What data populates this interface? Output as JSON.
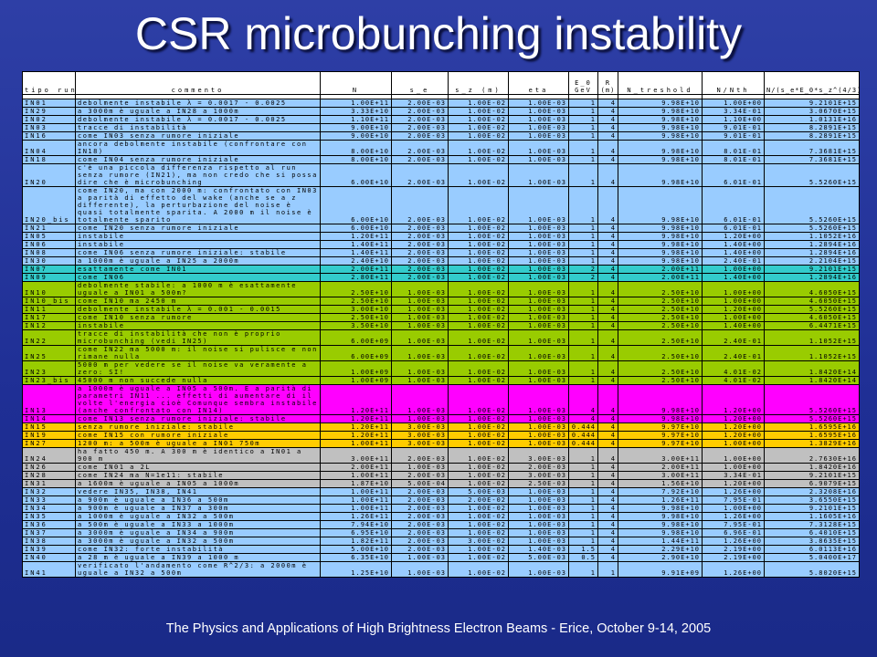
{
  "title": "CSR microbunching instability",
  "footer": "The Physics and Applications of High Brightness Electron Beams - Erice, October 9-14, 2005",
  "colors": {
    "blue": "#99ccff",
    "teal": "#33cccc",
    "green": "#99cc00",
    "magenta": "#ff00ff",
    "orange": "#ffcc00",
    "gray": "#c0c0c0",
    "white": "#ffffff"
  },
  "table": {
    "headers": [
      "tipo run",
      "commento",
      "N",
      "s_e",
      "s_z (m)",
      "eta",
      "E_0 GeV",
      "R (m)",
      "N_treshold",
      "N/Nth",
      "N/(s_e*E_0*s_z^(4/3)*R^(2/3))"
    ],
    "rows": [
      {
        "color": "white",
        "h": 5,
        "cells": [
          "",
          "",
          "",
          "",
          "",
          "",
          "",
          "",
          "",
          "",
          ""
        ]
      },
      {
        "color": "blue",
        "cells": [
          "IN01",
          "debolmente instabile λ = 0.0017 - 0.0025",
          "1.00E+11",
          "2.00E-03",
          "1.00E-02",
          "1.00E-03",
          "1",
          "4",
          "9.98E+10",
          "1.00E+00",
          "9.2101E+15"
        ]
      },
      {
        "color": "blue",
        "cells": [
          "IN29",
          "a 3000m è uguale a IN28 a 1000m",
          "3.33E+10",
          "2.00E-03",
          "1.00E-02",
          "1.00E-03",
          "1",
          "4",
          "9.98E+10",
          "3.34E-01",
          "3.0670E+15"
        ]
      },
      {
        "color": "blue",
        "cells": [
          "IN02",
          "debolmente instabile λ = 0.0017 - 0.0025",
          "1.10E+11",
          "2.00E-03",
          "1.00E-02",
          "1.00E-03",
          "1",
          "4",
          "9.98E+10",
          "1.10E+00",
          "1.0131E+16"
        ]
      },
      {
        "color": "blue",
        "cells": [
          "IN03",
          "tracce di instabilità",
          "9.00E+10",
          "2.00E-03",
          "1.00E-02",
          "1.00E-03",
          "1",
          "4",
          "9.98E+10",
          "9.01E-01",
          "8.2891E+15"
        ]
      },
      {
        "color": "blue",
        "cells": [
          "IN16",
          "come IN03 senza rumore iniziale",
          "9.00E+10",
          "2.00E-03",
          "1.00E-02",
          "1.00E-03",
          "1",
          "4",
          "9.98E+10",
          "9.01E-01",
          "8.2891E+15"
        ]
      },
      {
        "color": "blue",
        "cells": [
          "IN04",
          "ancora debolmente instabile (confrontare con IN18)",
          "8.00E+10",
          "2.00E-03",
          "1.00E-02",
          "1.00E-03",
          "1",
          "4",
          "9.98E+10",
          "8.01E-01",
          "7.3681E+15"
        ]
      },
      {
        "color": "blue",
        "cells": [
          "IN18",
          "come IN04 senza rumore iniziale",
          "8.00E+10",
          "2.00E-03",
          "1.00E-02",
          "1.00E-03",
          "1",
          "4",
          "9.98E+10",
          "8.01E-01",
          "7.3681E+15"
        ]
      },
      {
        "color": "blue",
        "cells": [
          "IN20",
          "c'è una piccola differenza rispetto al run senza rumore (IN21), ma non credo che si possa dire che è microbunching",
          "6.00E+10",
          "2.00E-03",
          "1.00E-02",
          "1.00E-03",
          "1",
          "4",
          "9.98E+10",
          "6.01E-01",
          "5.5260E+15"
        ]
      },
      {
        "color": "blue",
        "cells": [
          "IN20_bis",
          "come IN20, ma con 2000 m: confrontato con IN03 a parità di effetto del wake (anche se a z differente), la perturbazione del noise è quasi totalmente sparita. A 2000 m il noise è totalmente sparito",
          "6.00E+10",
          "2.00E-03",
          "1.00E-02",
          "1.00E-03",
          "1",
          "4",
          "9.98E+10",
          "6.01E-01",
          "5.5260E+15"
        ]
      },
      {
        "color": "blue",
        "cells": [
          "IN21",
          "come IN20 senza rumore iniziale",
          "6.00E+10",
          "2.00E-03",
          "1.00E-02",
          "1.00E-03",
          "1",
          "4",
          "9.98E+10",
          "6.01E-01",
          "5.5260E+15"
        ]
      },
      {
        "color": "blue",
        "cells": [
          "IN05",
          "instabile",
          "1.20E+11",
          "2.00E-03",
          "1.00E-02",
          "1.00E-03",
          "1",
          "4",
          "9.98E+10",
          "1.20E+00",
          "1.1052E+16"
        ]
      },
      {
        "color": "blue",
        "cells": [
          "IN06",
          "instabile",
          "1.40E+11",
          "2.00E-03",
          "1.00E-02",
          "1.00E-03",
          "1",
          "4",
          "9.98E+10",
          "1.40E+00",
          "1.2894E+16"
        ]
      },
      {
        "color": "blue",
        "cells": [
          "IN08",
          "come IN06 senza rumore iniziale: stabile",
          "1.40E+11",
          "2.00E-03",
          "1.00E-02",
          "1.00E-03",
          "1",
          "4",
          "9.98E+10",
          "1.40E+00",
          "1.2894E+16"
        ]
      },
      {
        "color": "blue",
        "cells": [
          "IN30",
          "a 1000m è uguale a IN25 a 2000m",
          "2.40E+10",
          "2.00E-03",
          "1.00E-02",
          "1.00E-03",
          "1",
          "4",
          "9.98E+10",
          "2.40E-01",
          "2.2104E+15"
        ]
      },
      {
        "color": "teal",
        "cells": [
          "IN07",
          "esattamente come IN01",
          "2.00E+11",
          "2.00E-03",
          "1.00E-02",
          "1.00E-03",
          "2",
          "4",
          "2.00E+11",
          "1.00E+00",
          "9.2101E+15"
        ]
      },
      {
        "color": "teal",
        "cells": [
          "IN09",
          "come IN06",
          "2.80E+11",
          "2.00E-03",
          "1.00E-02",
          "1.00E-03",
          "2",
          "4",
          "2.00E+11",
          "1.40E+00",
          "1.2894E+16"
        ]
      },
      {
        "color": "green",
        "cells": [
          "IN10",
          "debolmente stabile: a 1000 m è esattamente uguale a IN01 a 500m?",
          "2.50E+10",
          "1.00E-03",
          "1.00E-02",
          "1.00E-03",
          "1",
          "4",
          "2.50E+10",
          "1.00E+00",
          "4.6050E+15"
        ]
      },
      {
        "color": "green",
        "cells": [
          "IN10_bis",
          "come IN10 ma 2450 m",
          "2.50E+10",
          "1.00E-03",
          "1.00E-02",
          "1.00E-03",
          "1",
          "4",
          "2.50E+10",
          "1.00E+00",
          "4.6050E+15"
        ]
      },
      {
        "color": "green",
        "cells": [
          "IN11",
          "debolmente instabile λ = 0.001 - 0.0015",
          "3.00E+10",
          "1.00E-03",
          "1.00E-02",
          "1.00E-03",
          "1",
          "4",
          "2.50E+10",
          "1.20E+00",
          "5.5260E+15"
        ]
      },
      {
        "color": "green",
        "cells": [
          "IN17",
          "come IN10 senza rumore",
          "2.50E+10",
          "1.00E-03",
          "1.00E-02",
          "1.00E-03",
          "1",
          "4",
          "2.50E+10",
          "1.00E+00",
          "4.6050E+15"
        ]
      },
      {
        "color": "green",
        "cells": [
          "IN12",
          "instabile",
          "3.50E+10",
          "1.00E-03",
          "1.00E-02",
          "1.00E-03",
          "1",
          "4",
          "2.50E+10",
          "1.40E+00",
          "6.4471E+15"
        ]
      },
      {
        "color": "green",
        "cells": [
          "IN22",
          "tracce di instabilità che non è proprio microbunching (vedi IN25)",
          "6.00E+09",
          "1.00E-03",
          "1.00E-02",
          "1.00E-03",
          "1",
          "4",
          "2.50E+10",
          "2.40E-01",
          "1.1052E+15"
        ]
      },
      {
        "color": "green",
        "cells": [
          "IN25",
          "come IN22 ma 5000 m: il noise si pulisce e non rimane nulla",
          "6.00E+09",
          "1.00E-03",
          "1.00E-02",
          "1.00E-03",
          "1",
          "4",
          "2.50E+10",
          "2.40E-01",
          "1.1052E+15"
        ]
      },
      {
        "color": "green",
        "cells": [
          "IN23",
          "5000 m per vedere se il noise va veramente a zero: SI!",
          "1.00E+09",
          "1.00E-03",
          "1.00E-02",
          "1.00E-03",
          "1",
          "4",
          "2.50E+10",
          "4.01E-02",
          "1.8420E+14"
        ]
      },
      {
        "color": "green",
        "cells": [
          "IN23_bis",
          "45000 m non succede nulla",
          "1.00E+09",
          "1.00E-03",
          "1.00E-02",
          "1.00E-03",
          "1",
          "4",
          "2.50E+10",
          "4.01E-02",
          "1.8420E+14"
        ]
      },
      {
        "color": "magenta",
        "cells": [
          "IN13",
          "a 1000m è uguale a IN05 a 500m. E a parità di parametri IN11 ... effetti di aumentare di il volte l'energia cioè Comunque sembra instabile (anche confrontato con IN14)",
          "1.20E+11",
          "1.00E-03",
          "1.00E-02",
          "1.00E-03",
          "4",
          "4",
          "9.98E+10",
          "1.20E+00",
          "5.5260E+15"
        ]
      },
      {
        "color": "magenta",
        "cells": [
          "IN14",
          "come IN13 senza rumore iniziale: stabile",
          "1.20E+11",
          "1.00E-03",
          "1.00E-02",
          "1.00E-03",
          "4",
          "4",
          "9.98E+10",
          "1.20E+00",
          "5.5260E+15"
        ]
      },
      {
        "color": "orange",
        "cells": [
          "IN15",
          "senza rumore iniziale: stabile",
          "1.20E+11",
          "3.00E-03",
          "1.00E-02",
          "1.00E-03",
          "0.444",
          "4",
          "9.97E+10",
          "1.20E+00",
          "1.6595E+16"
        ]
      },
      {
        "color": "orange",
        "cells": [
          "IN19",
          "come IN15 con rumore iniziale",
          "1.20E+11",
          "3.00E-03",
          "1.00E-02",
          "1.00E-03",
          "0.444",
          "4",
          "9.97E+10",
          "1.20E+00",
          "1.6595E+16"
        ]
      },
      {
        "color": "orange",
        "cells": [
          "IN27",
          "1200 m: a 500m è uguale a IN01 750m",
          "1.00E+11",
          "3.00E-03",
          "1.00E-02",
          "1.00E-03",
          "0.444",
          "4",
          "9.97E+10",
          "1.00E+00",
          "1.3829E+16"
        ]
      },
      {
        "color": "gray",
        "cells": [
          "IN24",
          "ha fatto 450 m. A 300 m è identico a IN01 a 900 m",
          "3.00E+11",
          "2.00E-03",
          "1.00E-02",
          "3.00E-03",
          "1",
          "4",
          "3.00E+11",
          "1.00E+00",
          "2.7630E+16"
        ]
      },
      {
        "color": "gray",
        "cells": [
          "IN26",
          "come IN01 a 2L",
          "2.00E+11",
          "1.00E-03",
          "1.00E-02",
          "2.00E-03",
          "1",
          "4",
          "2.00E+11",
          "1.00E+00",
          "1.8420E+16"
        ]
      },
      {
        "color": "gray",
        "cells": [
          "IN28",
          "come IN24 ma N=1e11: stabile",
          "1.00E+11",
          "2.00E-03",
          "1.00E-02",
          "3.00E-03",
          "1",
          "4",
          "3.00E+11",
          "3.34E-01",
          "9.2101E+15"
        ]
      },
      {
        "color": "gray",
        "cells": [
          "IN31",
          "a 1600m è uguale a IN05 a 1000m",
          "1.87E+10",
          "5.00E-04",
          "1.00E-02",
          "2.50E-03",
          "1",
          "4",
          "1.56E+10",
          "1.20E+00",
          "6.9079E+15"
        ]
      },
      {
        "color": "blue",
        "cells": [
          "IN32",
          "vedere IN35, IN38, IN41",
          "1.00E+11",
          "2.00E-03",
          "5.00E-03",
          "1.00E-03",
          "1",
          "4",
          "7.92E+10",
          "1.26E+00",
          "2.3208E+16"
        ]
      },
      {
        "color": "blue",
        "cells": [
          "IN33",
          "a 900m è uguale a IN36 a 500m",
          "1.00E+11",
          "2.00E-03",
          "2.00E-02",
          "1.00E-03",
          "1",
          "4",
          "1.26E+11",
          "7.95E-01",
          "3.6550E+15"
        ]
      },
      {
        "color": "blue",
        "cells": [
          "IN34",
          "a 900m è uguale a IN37 a 300m",
          "1.00E+11",
          "2.00E-03",
          "1.00E-02",
          "1.00E-03",
          "1",
          "4",
          "9.98E+10",
          "1.00E+00",
          "9.2101E+15"
        ]
      },
      {
        "color": "blue",
        "cells": [
          "IN35",
          "a 1000m è uguale a IN32 a 500m",
          "1.26E+11",
          "2.00E-03",
          "1.00E-02",
          "1.00E-03",
          "1",
          "4",
          "9.98E+10",
          "1.26E+00",
          "1.1605E+16"
        ]
      },
      {
        "color": "blue",
        "cells": [
          "IN36",
          "a 500m è uguale a IN33 a 1000m",
          "7.94E+10",
          "2.00E-03",
          "1.00E-02",
          "1.00E-03",
          "1",
          "4",
          "9.98E+10",
          "7.95E-01",
          "7.3128E+15"
        ]
      },
      {
        "color": "blue",
        "cells": [
          "IN37",
          "a 3000m è uguale a IN34 a 900m",
          "6.95E+10",
          "2.00E-03",
          "1.00E-02",
          "1.00E-03",
          "1",
          "4",
          "9.98E+10",
          "6.96E-01",
          "6.4010E+15"
        ]
      },
      {
        "color": "blue",
        "cells": [
          "IN38",
          "a 3000m è uguale a IN32 a 500m",
          "1.82E+11",
          "2.00E-03",
          "3.00E-02",
          "1.00E-03",
          "1",
          "4",
          "1.44E+11",
          "1.26E+00",
          "3.8635E+15"
        ]
      },
      {
        "color": "blue",
        "cells": [
          "IN39",
          "come IN32: forte instabilità",
          "5.00E+10",
          "2.00E-03",
          "1.00E-02",
          "1.40E-03",
          "1.5",
          "4",
          "2.29E+10",
          "2.19E+00",
          "6.0113E+16"
        ]
      },
      {
        "color": "blue",
        "cells": [
          "IN40",
          "a 28 m è uguale a IN39 a 1000 m",
          "6.35E+10",
          "1.00E-03",
          "1.00E-02",
          "5.00E-03",
          "0.5",
          "4",
          "2.90E+10",
          "2.19E+00",
          "5.0400E+17"
        ]
      },
      {
        "color": "blue",
        "cells": [
          "IN41",
          "verificato l'andamento come R^2/3: a 2000m è uguale a IN32 a 500m",
          "1.25E+10",
          "1.00E-03",
          "1.00E-02",
          "1.00E-03",
          "1",
          "1",
          "9.91E+09",
          "1.26E+00",
          "5.8020E+15"
        ]
      }
    ]
  }
}
